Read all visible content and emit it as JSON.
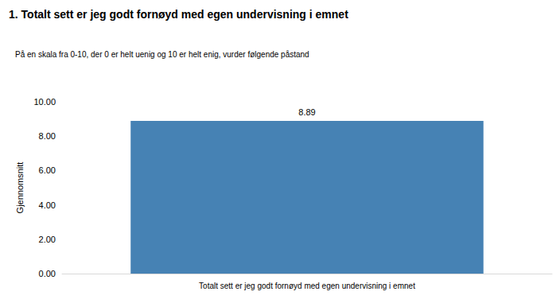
{
  "chart_data": {
    "type": "bar",
    "title": "1. Totalt sett er jeg godt fornøyd med egen undervisning i emnet",
    "subtitle": "På en skala fra 0-10, der 0 er helt uenig og 10 er helt enig, vurder følgende påstand",
    "y_label": "Gjennomsnitt",
    "categories": [
      "Totalt sett er jeg godt fornøyd med egen undervisning i emnet"
    ],
    "values": [
      8.89
    ],
    "color": "#4682b4",
    "ylim": [
      0,
      10
    ],
    "yticks": [
      {
        "value": 0,
        "label": "0.00"
      },
      {
        "value": 2,
        "label": "2.00"
      },
      {
        "value": 4,
        "label": "4.00"
      },
      {
        "value": 6,
        "label": "6.00"
      },
      {
        "value": 8,
        "label": "8.00"
      },
      {
        "value": 10,
        "label": "10.00"
      }
    ],
    "grid": false,
    "data_labels": true
  }
}
